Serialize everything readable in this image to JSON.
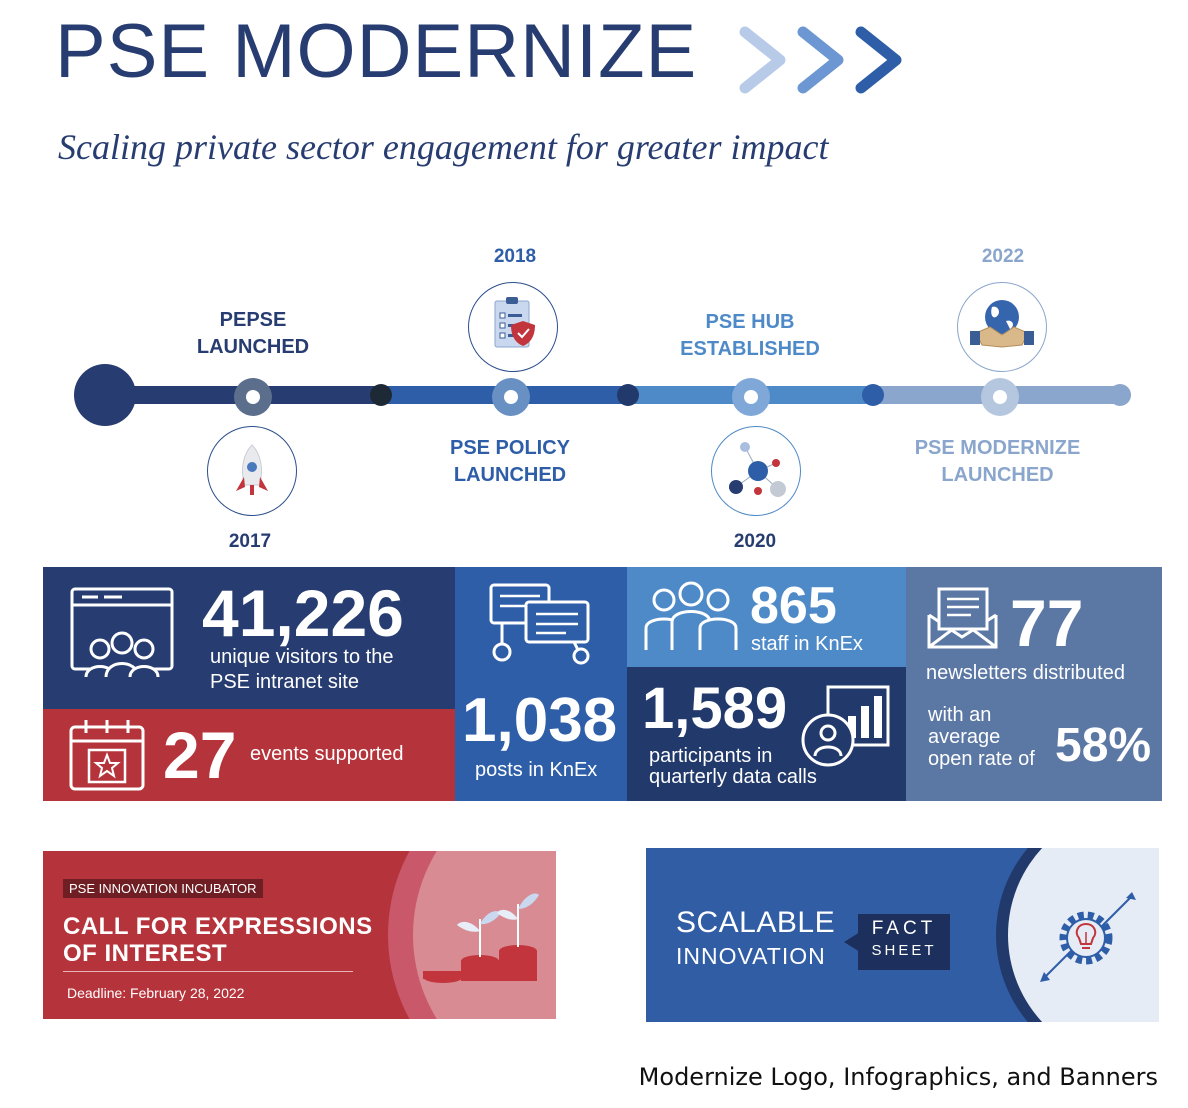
{
  "header": {
    "title": "PSE MODERNIZE",
    "subtitle": "Scaling private sector engagement for greater impact"
  },
  "colors": {
    "navy": "#273c70",
    "blue": "#2e5ea8",
    "mid_blue": "#4f8ac8",
    "light_blue": "#8aa6cc",
    "red": "#b5343b",
    "slate": "#5b77a4"
  },
  "timeline": {
    "milestones": [
      {
        "year": "2017",
        "label": "PEPSE\nLAUNCHED",
        "icon": "rocket-icon"
      },
      {
        "year": "2018",
        "label": "PSE POLICY\nLAUNCHED",
        "icon": "clipboard-shield-icon"
      },
      {
        "year": "2020",
        "label": "PSE HUB\nESTABLISHED",
        "icon": "network-icon"
      },
      {
        "year": "2022",
        "label": "PSE MODERNIZE\nLAUNCHED",
        "icon": "globe-handshake-icon"
      }
    ]
  },
  "stats": {
    "visitors": {
      "value": "41,226",
      "line1": "unique visitors to the",
      "line2": "PSE intranet site",
      "icon": "website-audience-icon"
    },
    "events": {
      "value": "27",
      "label": "events supported",
      "icon": "calendar-star-icon"
    },
    "posts": {
      "value": "1,038",
      "label": "posts in KnEx",
      "icon": "chat-bubbles-icon"
    },
    "staff": {
      "value": "865",
      "label": "staff in KnEx",
      "icon": "people-group-icon"
    },
    "participants": {
      "value": "1,589",
      "line1": "participants in",
      "line2": "quarterly data calls",
      "icon": "user-chart-icon"
    },
    "newsletters": {
      "value": "77",
      "label": "newsletters distributed",
      "icon": "envelope-letter-icon"
    },
    "open_rate": {
      "line1": "with an",
      "line2": "average",
      "line3": "open rate of",
      "value": "58%"
    }
  },
  "banners": {
    "incubator": {
      "tag": "PSE INNOVATION INCUBATOR",
      "line1": "CALL FOR EXPRESSIONS",
      "line2": "OF INTEREST",
      "deadline": "Deadline: February 28, 2022",
      "icon": "plant-coins-icon"
    },
    "fact_sheet": {
      "line1": "SCALABLE",
      "line2": "INNOVATION",
      "badge1": "FACT",
      "badge2": "SHEET",
      "icon": "gear-bulb-icon"
    }
  },
  "caption": "Modernize Logo, Infographics, and Banners"
}
